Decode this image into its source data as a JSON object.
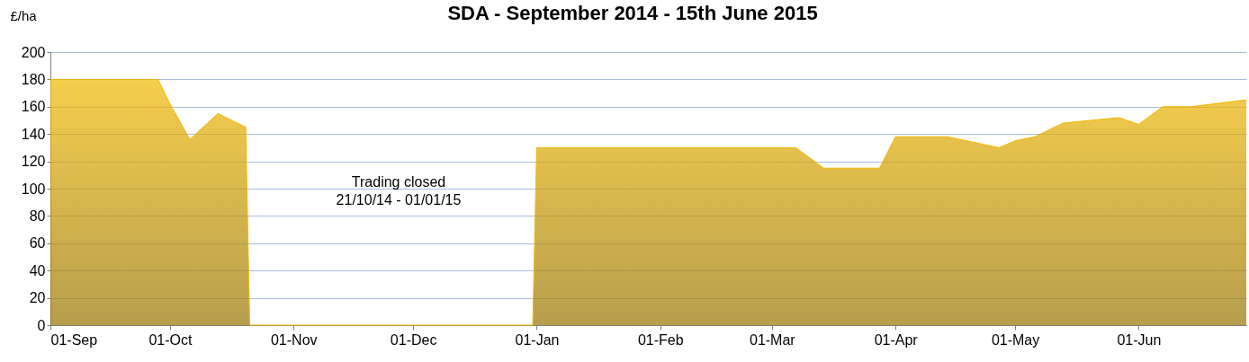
{
  "chart_data": {
    "type": "area",
    "title": "SDA - September 2014 - 15th June 2015",
    "ylabel": "£/ha",
    "x": [
      "2014-09-01",
      "2014-09-28",
      "2014-10-01",
      "2014-10-06",
      "2014-10-13",
      "2014-10-20",
      "2014-10-21",
      "2014-12-31",
      "2015-01-01",
      "2015-03-07",
      "2015-03-14",
      "2015-03-28",
      "2015-04-01",
      "2015-04-14",
      "2015-04-27",
      "2015-05-01",
      "2015-05-06",
      "2015-05-13",
      "2015-05-27",
      "2015-06-01",
      "2015-06-07",
      "2015-06-14",
      "2015-06-28"
    ],
    "series": [
      {
        "color": "#f2b800",
        "values": [
          180,
          180,
          162,
          136,
          155,
          145,
          0,
          0,
          130,
          130,
          115,
          115,
          138,
          138,
          130,
          135,
          138,
          148,
          152,
          147,
          160,
          160,
          165
        ]
      }
    ],
    "xlim": [
      "2014-09-01",
      "2015-06-28"
    ],
    "xticks": [
      {
        "value": "2014-09-01",
        "label": "01-Sep"
      },
      {
        "value": "2014-10-01",
        "label": "01-Oct"
      },
      {
        "value": "2014-11-01",
        "label": "01-Nov"
      },
      {
        "value": "2014-12-01",
        "label": "01-Dec"
      },
      {
        "value": "2015-01-01",
        "label": "01-Jan"
      },
      {
        "value": "2015-02-01",
        "label": "01-Feb"
      },
      {
        "value": "2015-03-01",
        "label": "01-Mar"
      },
      {
        "value": "2015-04-01",
        "label": "01-Apr"
      },
      {
        "value": "2015-05-01",
        "label": "01-May"
      },
      {
        "value": "2015-06-01",
        "label": "01-Jun"
      }
    ],
    "ylim": [
      0,
      200
    ],
    "yticks": [
      0,
      20,
      40,
      60,
      80,
      100,
      120,
      140,
      160,
      180,
      200
    ],
    "grid": "y",
    "annotations": [
      "Trading closed\n21/10/14 - 01/01/15"
    ]
  }
}
